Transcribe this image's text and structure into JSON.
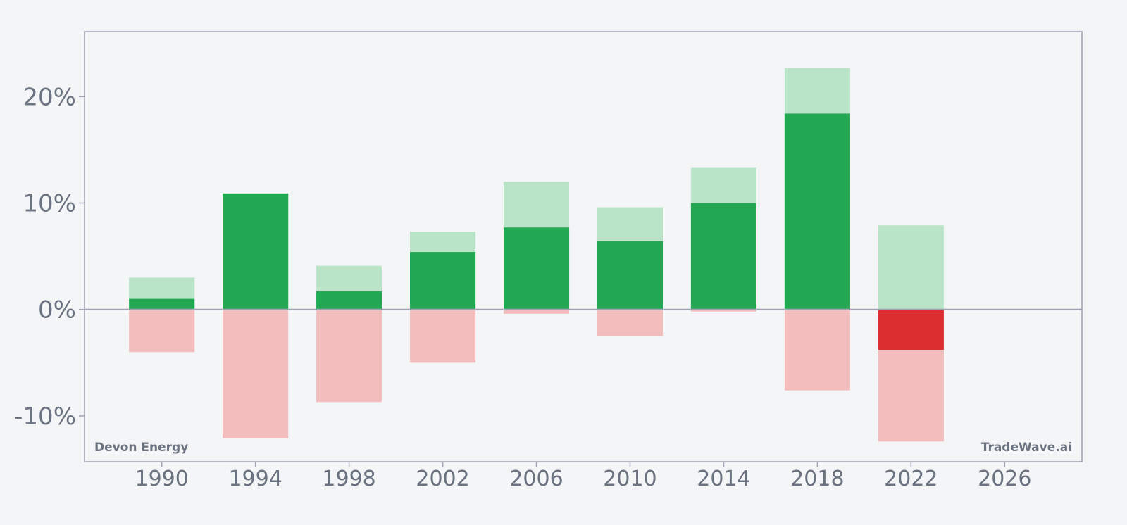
{
  "chart_data": {
    "type": "bar",
    "x_ticks": [
      1990,
      1994,
      1998,
      2002,
      2006,
      2010,
      2014,
      2018,
      2022,
      2026
    ],
    "y_ticks": [
      -10,
      0,
      10,
      20
    ],
    "y_tick_format": "{v}%",
    "xlim": [
      1986.7,
      2029.3
    ],
    "ylim": [
      -14.3,
      26.1
    ],
    "grid": false,
    "colors": {
      "gain_solid": "#22a852",
      "gain_light": "#bae4c8",
      "loss_solid": "#dc2e2e",
      "loss_light": "#f3bdbd",
      "axis": "#9ca3af",
      "text": "#6b7280"
    },
    "bars": [
      {
        "x": 1990,
        "close": 1.0,
        "high": 3.0,
        "low": -4.0,
        "highlight": false
      },
      {
        "x": 1994,
        "close": 10.9,
        "high": 10.9,
        "low": -12.1,
        "highlight": false
      },
      {
        "x": 1998,
        "close": 1.7,
        "high": 4.1,
        "low": -8.7,
        "highlight": false
      },
      {
        "x": 2002,
        "close": 5.4,
        "high": 7.3,
        "low": -5.0,
        "highlight": false
      },
      {
        "x": 2006,
        "close": 7.7,
        "high": 12.0,
        "low": -0.4,
        "highlight": false
      },
      {
        "x": 2010,
        "close": 6.4,
        "high": 9.6,
        "low": -2.5,
        "highlight": false
      },
      {
        "x": 2014,
        "close": 10.0,
        "high": 13.3,
        "low": -0.2,
        "highlight": false
      },
      {
        "x": 2018,
        "close": 18.4,
        "high": 22.7,
        "low": -7.6,
        "highlight": false
      },
      {
        "x": 2022,
        "close": -3.8,
        "high": 7.9,
        "low": -12.4,
        "highlight": true
      }
    ],
    "bar_width_years": 2.8,
    "annotations": {
      "company": "Devon Energy",
      "brand": "TradeWave.ai"
    }
  }
}
